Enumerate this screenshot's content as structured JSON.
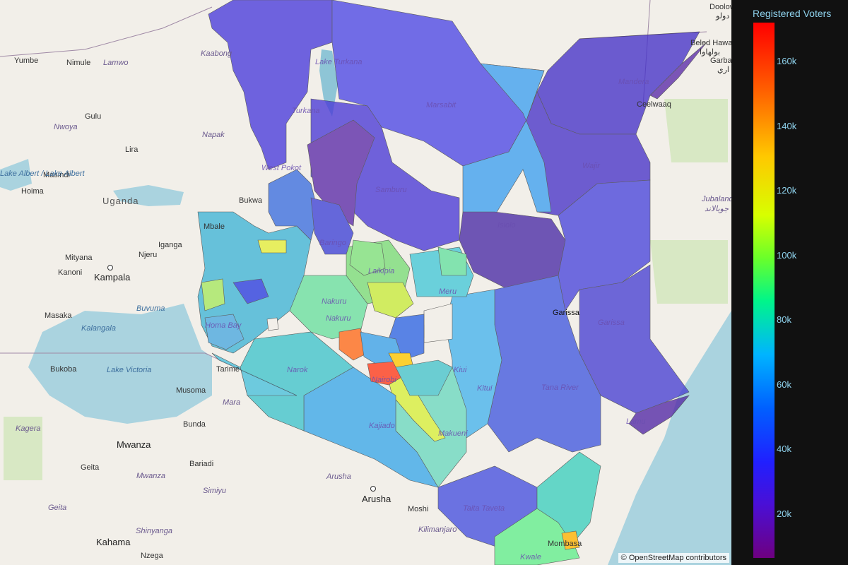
{
  "colorbar": {
    "title": "Registered Voters",
    "ticks": [
      {
        "label": "160k",
        "value": 160000
      },
      {
        "label": "140k",
        "value": 140000
      },
      {
        "label": "120k",
        "value": 120000
      },
      {
        "label": "100k",
        "value": 100000
      },
      {
        "label": "80k",
        "value": 80000
      },
      {
        "label": "60k",
        "value": 60000
      },
      {
        "label": "40k",
        "value": 40000
      },
      {
        "label": "20k",
        "value": 20000
      }
    ]
  },
  "attribution": "© OpenStreetMap contributors",
  "places": {
    "doolow": "Doolow",
    "doolow_ar": "دولو",
    "beled_hawa": "Beled Hawa",
    "beled_hawa_ar": "بولهاوا",
    "garbah": "Garbah",
    "garbah_ar": "اري",
    "ceelwaaq": "Ceelwaaq",
    "jubaland": "Jubaland",
    "jubaland_ar": "جوبالاند",
    "yumbe": "Yumbe",
    "nimule": "Nimule",
    "lamwo": "Lamwo",
    "kaabong": "Kaabong",
    "gulu": "Gulu",
    "nwoya": "Nwoya",
    "napak": "Napak",
    "lira": "Lira",
    "masindi": "Masindi",
    "hoima": "Hoima",
    "lake_albert": "Lake Albert / Lake Albert",
    "uganda": "Uganda",
    "mbale": "Mbale",
    "iganga": "Iganga",
    "mityana": "Mityana",
    "njeru": "Njeru",
    "kanoni": "Kanoni",
    "kampala": "Kampala",
    "buvuma": "Buvuma",
    "masaka": "Masaka",
    "kalangala": "Kalangala",
    "lake_victoria": "Lake Victoria",
    "bukoba": "Bukoba",
    "tarime": "Tarime",
    "musoma": "Musoma",
    "mara": "Mara",
    "kagera": "Kagera",
    "bunda": "Bunda",
    "mwanza": "Mwanza",
    "bariadi": "Bariadi",
    "geita": "Geita",
    "mwanza_region": "Mwanza",
    "simiyu": "Simiyu",
    "arusha_region": "Arusha",
    "arusha": "Arusha",
    "moshi": "Moshi",
    "kilimanjaro": "Kilimanjaro",
    "shinyanga": "Shinyanga",
    "kahama": "Kahama",
    "nzega": "Nzega",
    "mandera": "Mandera",
    "lake_turkana": "Lake Turkana",
    "turkana": "Turkana",
    "marsabit": "Marsabit",
    "wajir": "Wajir",
    "west_pokot": "West Pokot",
    "samburu": "Samburu",
    "isiolo": "Isiolo",
    "baringo": "Baringo",
    "laikipia": "Laikipia",
    "meru": "Meru",
    "nakuru": "Nakuru",
    "homa_bay": "Homa Bay",
    "narok": "Narok",
    "nairobi": "Nairobi",
    "kitui": "Kitui",
    "kiui": "Kiui",
    "garissa_town": "Garissa",
    "garissa": "Garissa",
    "tana_river": "Tana River",
    "lamu": "Lamu",
    "kajiado": "Kajiado",
    "makueni": "Makueni",
    "taita_taveta": "Taita Taveta",
    "mombasa": "Mombasa",
    "kwale": "Kwale",
    "busia": "Bukwa"
  },
  "colors": {
    "land": "#f2efe9",
    "water": "#aad3df",
    "park": "#d8e8c4",
    "colorbar_text": "#8fd3ee",
    "panel_bg": "#111111"
  }
}
